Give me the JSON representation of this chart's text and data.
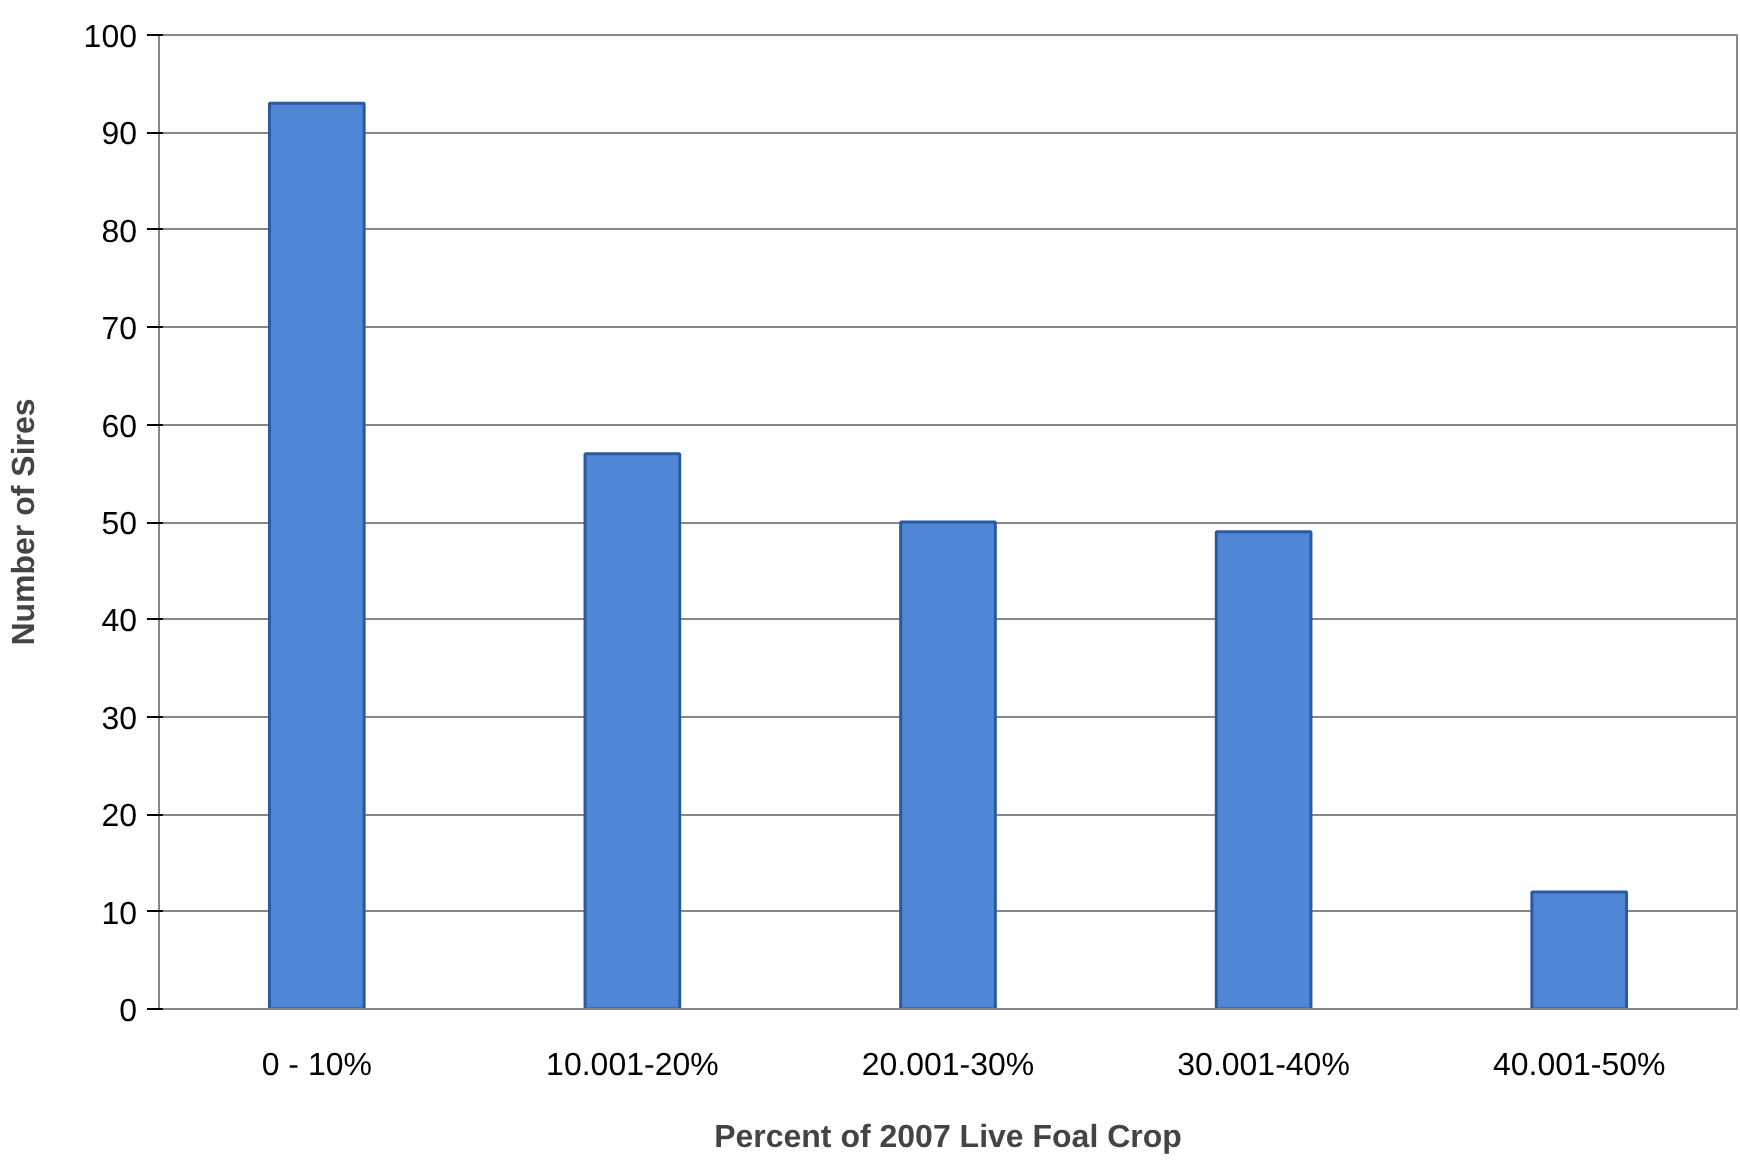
{
  "chart_data": {
    "type": "bar",
    "xlabel": "Percent of 2007 Live Foal Crop",
    "ylabel": "Number of Sires",
    "categories": [
      "0 - 10%",
      "10.001-20%",
      "20.001-30%",
      "30.001-40%",
      "40.001-50%"
    ],
    "values": [
      93,
      57,
      50,
      49,
      12
    ],
    "color": "#4f86d6",
    "ylim": [
      0,
      100
    ],
    "yticks": [
      0,
      10,
      20,
      30,
      40,
      50,
      60,
      70,
      80,
      90,
      100
    ],
    "grid": "y"
  }
}
